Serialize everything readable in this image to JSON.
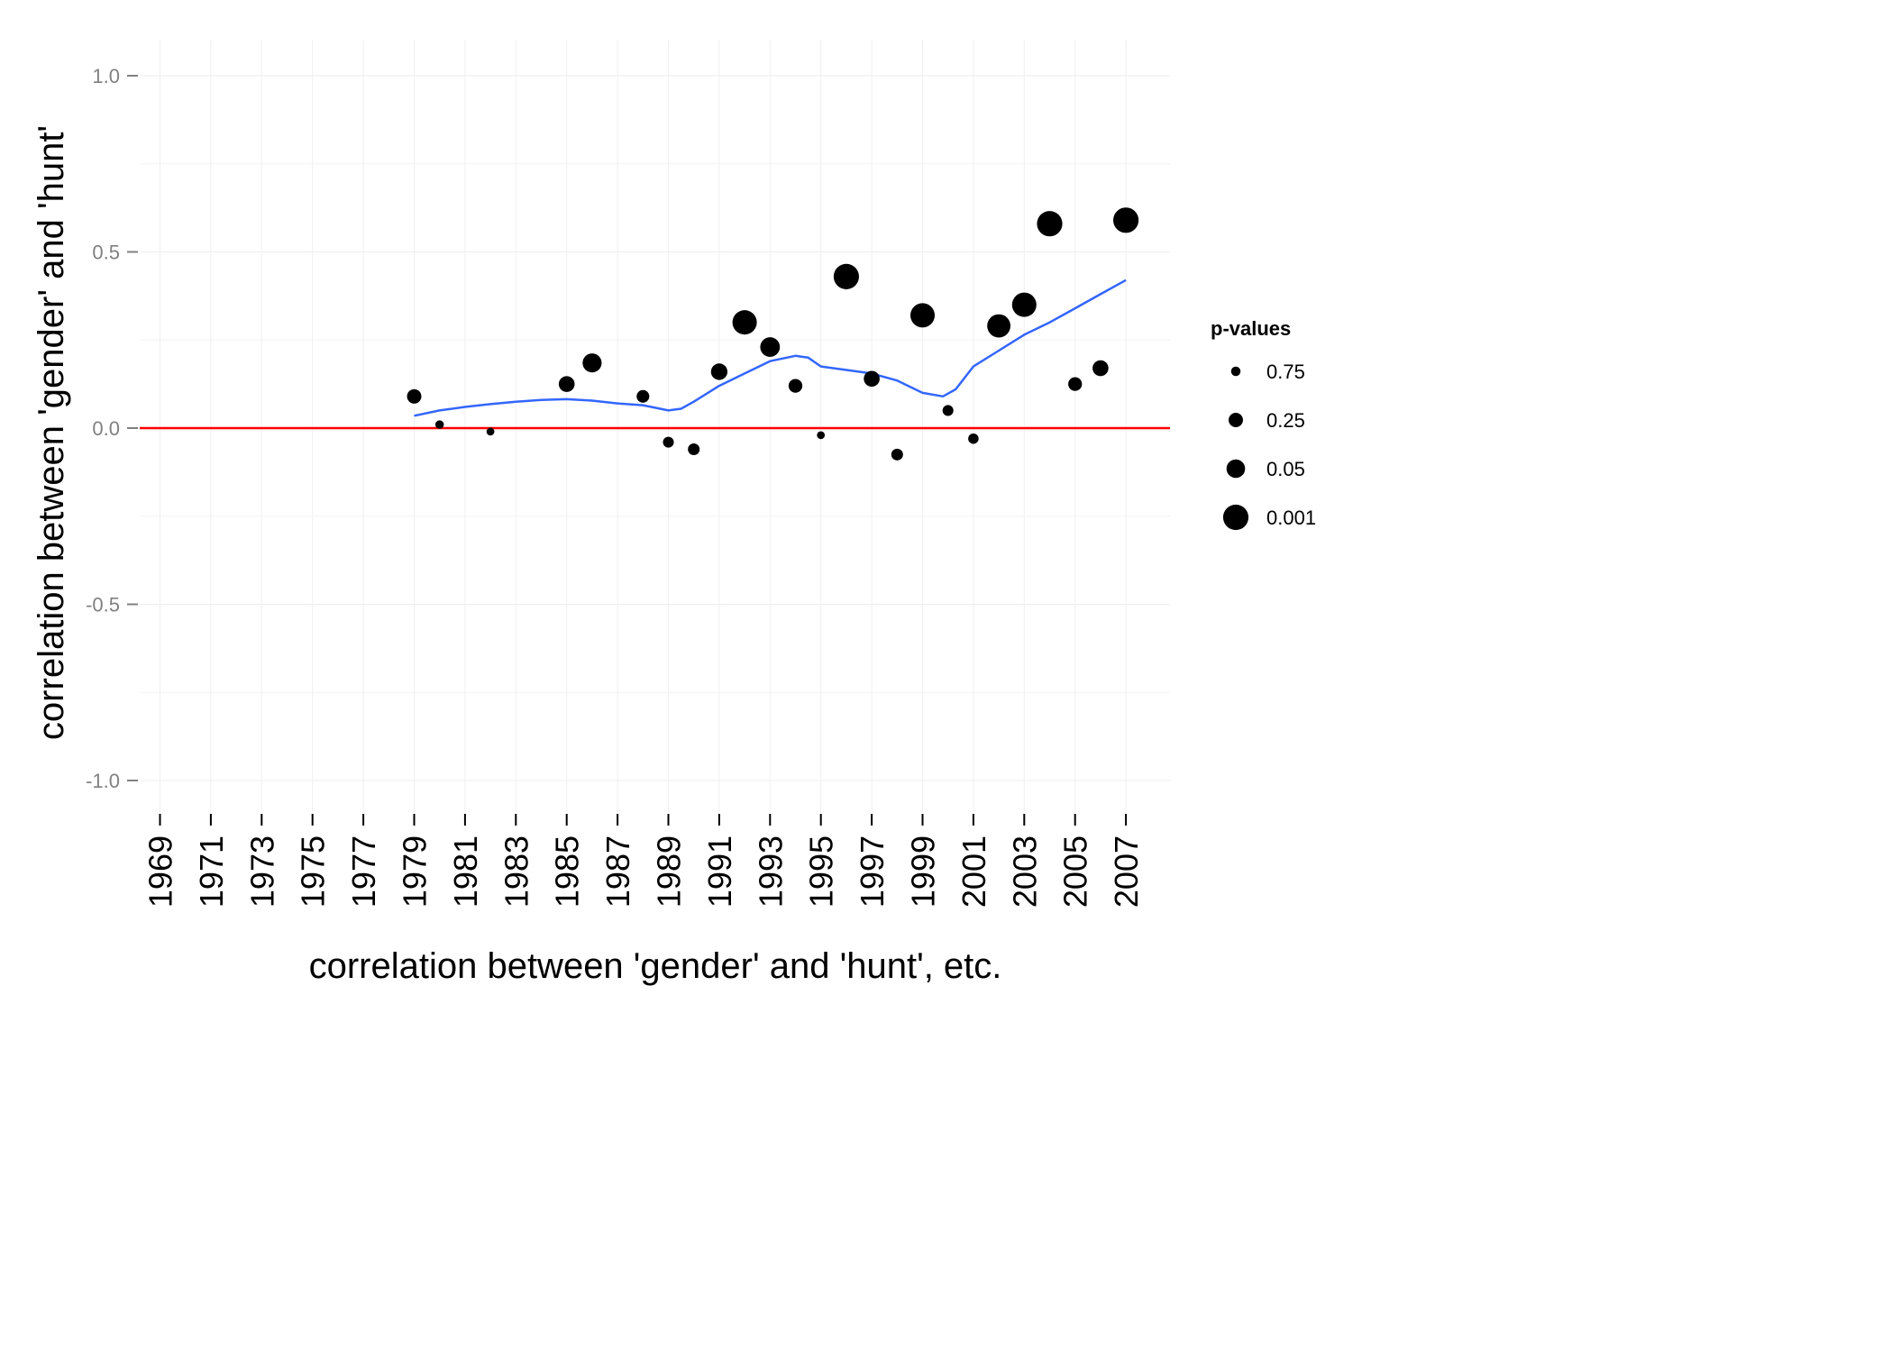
{
  "chart_data": {
    "type": "scatter",
    "title": "",
    "xlabel": "correlation between 'gender' and 'hunt', etc.",
    "ylabel": "correlation between 'gender' and 'hunt'",
    "xlim": [
      1968,
      2008
    ],
    "ylim": [
      -1.1,
      1.1
    ],
    "x_ticks": [
      "1969",
      "1971",
      "1973",
      "1975",
      "1977",
      "1979",
      "1981",
      "1983",
      "1985",
      "1987",
      "1989",
      "1991",
      "1993",
      "1995",
      "1997",
      "1999",
      "2001",
      "2003",
      "2005",
      "2007"
    ],
    "y_ticks": [
      1.0,
      0.5,
      0.0,
      -0.5,
      -1.0
    ],
    "y_tick_labels": [
      "1.0",
      "0.5",
      "0.0",
      "-0.5",
      "-1.0"
    ],
    "grid": true,
    "reference_line": {
      "y": 0.0,
      "color": "#ff0000"
    },
    "points": [
      {
        "x": 1979,
        "y": 0.09,
        "p": 0.25
      },
      {
        "x": 1980,
        "y": 0.01,
        "p": 0.85
      },
      {
        "x": 1982,
        "y": -0.01,
        "p": 0.9
      },
      {
        "x": 1985,
        "y": 0.125,
        "p": 0.15
      },
      {
        "x": 1986,
        "y": 0.185,
        "p": 0.04
      },
      {
        "x": 1988,
        "y": 0.09,
        "p": 0.4
      },
      {
        "x": 1989,
        "y": -0.04,
        "p": 0.6
      },
      {
        "x": 1990,
        "y": -0.06,
        "p": 0.5
      },
      {
        "x": 1991,
        "y": 0.16,
        "p": 0.12
      },
      {
        "x": 1992,
        "y": 0.3,
        "p": 0.002
      },
      {
        "x": 1993,
        "y": 0.23,
        "p": 0.03
      },
      {
        "x": 1994,
        "y": 0.12,
        "p": 0.3
      },
      {
        "x": 1995,
        "y": -0.02,
        "p": 0.9
      },
      {
        "x": 1996,
        "y": 0.43,
        "p": 0.001
      },
      {
        "x": 1997,
        "y": 0.14,
        "p": 0.15
      },
      {
        "x": 1998,
        "y": -0.075,
        "p": 0.5
      },
      {
        "x": 1999,
        "y": 0.32,
        "p": 0.002
      },
      {
        "x": 2000,
        "y": 0.05,
        "p": 0.6
      },
      {
        "x": 2001,
        "y": -0.03,
        "p": 0.65
      },
      {
        "x": 2002,
        "y": 0.29,
        "p": 0.004
      },
      {
        "x": 2003,
        "y": 0.35,
        "p": 0.002
      },
      {
        "x": 2004,
        "y": 0.58,
        "p": 0.001
      },
      {
        "x": 2005,
        "y": 0.125,
        "p": 0.3
      },
      {
        "x": 2006,
        "y": 0.17,
        "p": 0.15
      },
      {
        "x": 2007,
        "y": 0.59,
        "p": 0.001
      }
    ],
    "smooth": {
      "color": "#3366ff",
      "x": [
        1979,
        1980,
        1981,
        1982,
        1983,
        1984,
        1985,
        1986,
        1987,
        1988,
        1989,
        1989.5,
        1990,
        1991,
        1992,
        1993,
        1994,
        1994.5,
        1995,
        1996,
        1997,
        1998,
        1999,
        1999.8,
        2000.3,
        2001,
        2002,
        2003,
        2004,
        2005,
        2006,
        2007
      ],
      "y": [
        0.035,
        0.05,
        0.06,
        0.068,
        0.075,
        0.08,
        0.082,
        0.078,
        0.07,
        0.065,
        0.05,
        0.055,
        0.075,
        0.12,
        0.155,
        0.19,
        0.205,
        0.2,
        0.175,
        0.165,
        0.155,
        0.135,
        0.1,
        0.09,
        0.11,
        0.175,
        0.22,
        0.265,
        0.3,
        0.34,
        0.38,
        0.42
      ]
    },
    "legend": {
      "title": "p-values",
      "placement": "right",
      "items": [
        {
          "label": "0.75",
          "p": 0.75
        },
        {
          "label": "0.25",
          "p": 0.25
        },
        {
          "label": "0.05",
          "p": 0.05
        },
        {
          "label": "0.001",
          "p": 0.001
        }
      ]
    },
    "point_color": "#000000"
  }
}
